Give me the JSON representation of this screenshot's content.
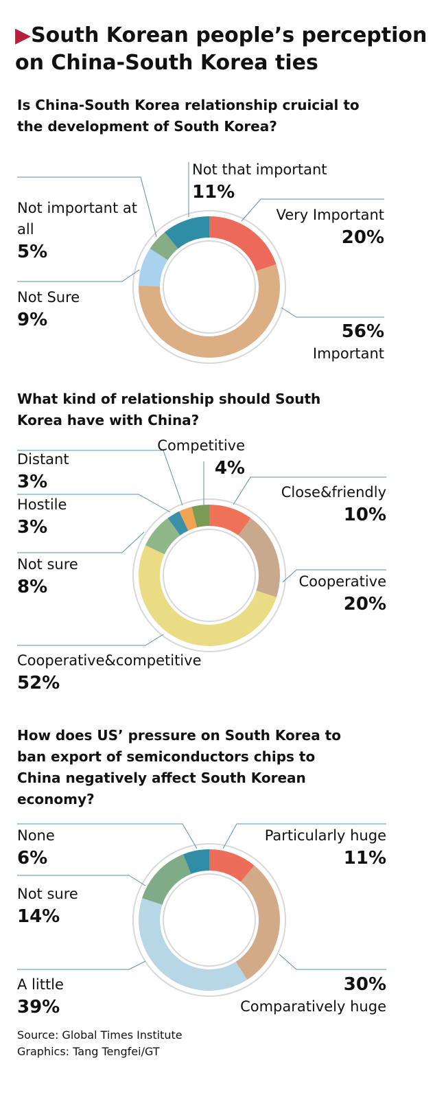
{
  "title": "South Korean people’s perception on China-South Korea ties",
  "chart_data": [
    {
      "type": "donut",
      "title": "Is  China-South Korea relationship cruicial to the development of South Korea?",
      "categories": [
        "Very Important",
        "Important",
        "Not Sure",
        "Not important at all",
        "Not that important"
      ],
      "values": [
        20,
        56,
        9,
        5,
        11
      ],
      "value_labels": [
        "20%",
        "56%",
        "9%",
        "5%",
        "11%"
      ],
      "colors": [
        "#ec6a5c",
        "#dcae84",
        "#a8d2ee",
        "#86ae84",
        "#2f8ea3"
      ]
    },
    {
      "type": "donut",
      "title": "What kind of relationship should South Korea have with China?",
      "categories": [
        "Close&friendly",
        "Cooperative",
        "Cooperative&competitive",
        "Not sure",
        "Hostile",
        "Distant",
        "Competitive"
      ],
      "values": [
        10,
        20,
        52,
        8,
        3,
        3,
        4
      ],
      "value_labels": [
        "10%",
        "20%",
        "52%",
        "8%",
        "3%",
        "3%",
        "4%"
      ],
      "colors": [
        "#ee7258",
        "#c9a98e",
        "#e9dc85",
        "#8fb78a",
        "#3b8fa6",
        "#f0a453",
        "#7b9a55"
      ]
    },
    {
      "type": "donut",
      "title": "How does US’ pressure on South Korea to ban export of semiconductors chips to China negatively affect South Korean economy?",
      "categories": [
        "Particularly huge",
        "Comparatively huge",
        "A little",
        "Not sure",
        "None"
      ],
      "values": [
        11,
        30,
        39,
        14,
        6
      ],
      "value_labels": [
        "11%",
        "30%",
        "39%",
        "14%",
        "6%"
      ],
      "colors": [
        "#ed6d5b",
        "#d3aa87",
        "#b7d7e6",
        "#7fab86",
        "#2f8ea3"
      ]
    }
  ],
  "source": "Source: Global Times Institute",
  "credit": "Graphics: Tang Tengfei/GT"
}
